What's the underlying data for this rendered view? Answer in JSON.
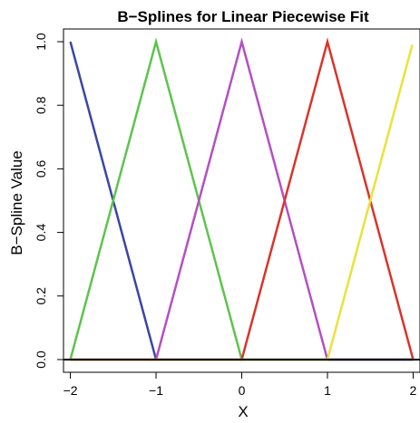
{
  "chart_data": {
    "type": "line",
    "title": "B−Splines for Linear Piecewise Fit",
    "xlabel": "X",
    "ylabel": "B−Spline Value",
    "xlim": [
      -2.08,
      2.08
    ],
    "ylim": [
      -0.04,
      1.04
    ],
    "x_ticks": [
      -2,
      -1,
      0,
      1,
      2
    ],
    "x_tick_labels": [
      "−2",
      "−1",
      "0",
      "1",
      "2"
    ],
    "y_ticks": [
      0.0,
      0.2,
      0.4,
      0.6,
      0.8,
      1.0
    ],
    "y_tick_labels": [
      "0.0",
      "0.2",
      "0.4",
      "0.6",
      "0.8",
      "1.0"
    ],
    "grid": false,
    "baseline": {
      "y": 0,
      "color": "#000000"
    },
    "series": [
      {
        "color": "#3a46a6",
        "x": [
          -2,
          -1,
          2
        ],
        "y": [
          1.0,
          0.0,
          0.0
        ]
      },
      {
        "color": "#5cc44c",
        "x": [
          -2,
          -1,
          0,
          2
        ],
        "y": [
          0.0,
          1.0,
          0.0,
          0.0
        ]
      },
      {
        "color": "#b44fc2",
        "x": [
          -2,
          -1,
          0,
          1,
          2
        ],
        "y": [
          0.0,
          0.0,
          1.0,
          0.0,
          0.0
        ]
      },
      {
        "color": "#d9342b",
        "x": [
          -2,
          0,
          1,
          2
        ],
        "y": [
          0.0,
          0.0,
          1.0,
          0.0
        ]
      },
      {
        "color": "#eae23a",
        "x": [
          -2,
          1,
          1.99
        ],
        "y": [
          0.0,
          0.0,
          0.99
        ]
      }
    ]
  }
}
